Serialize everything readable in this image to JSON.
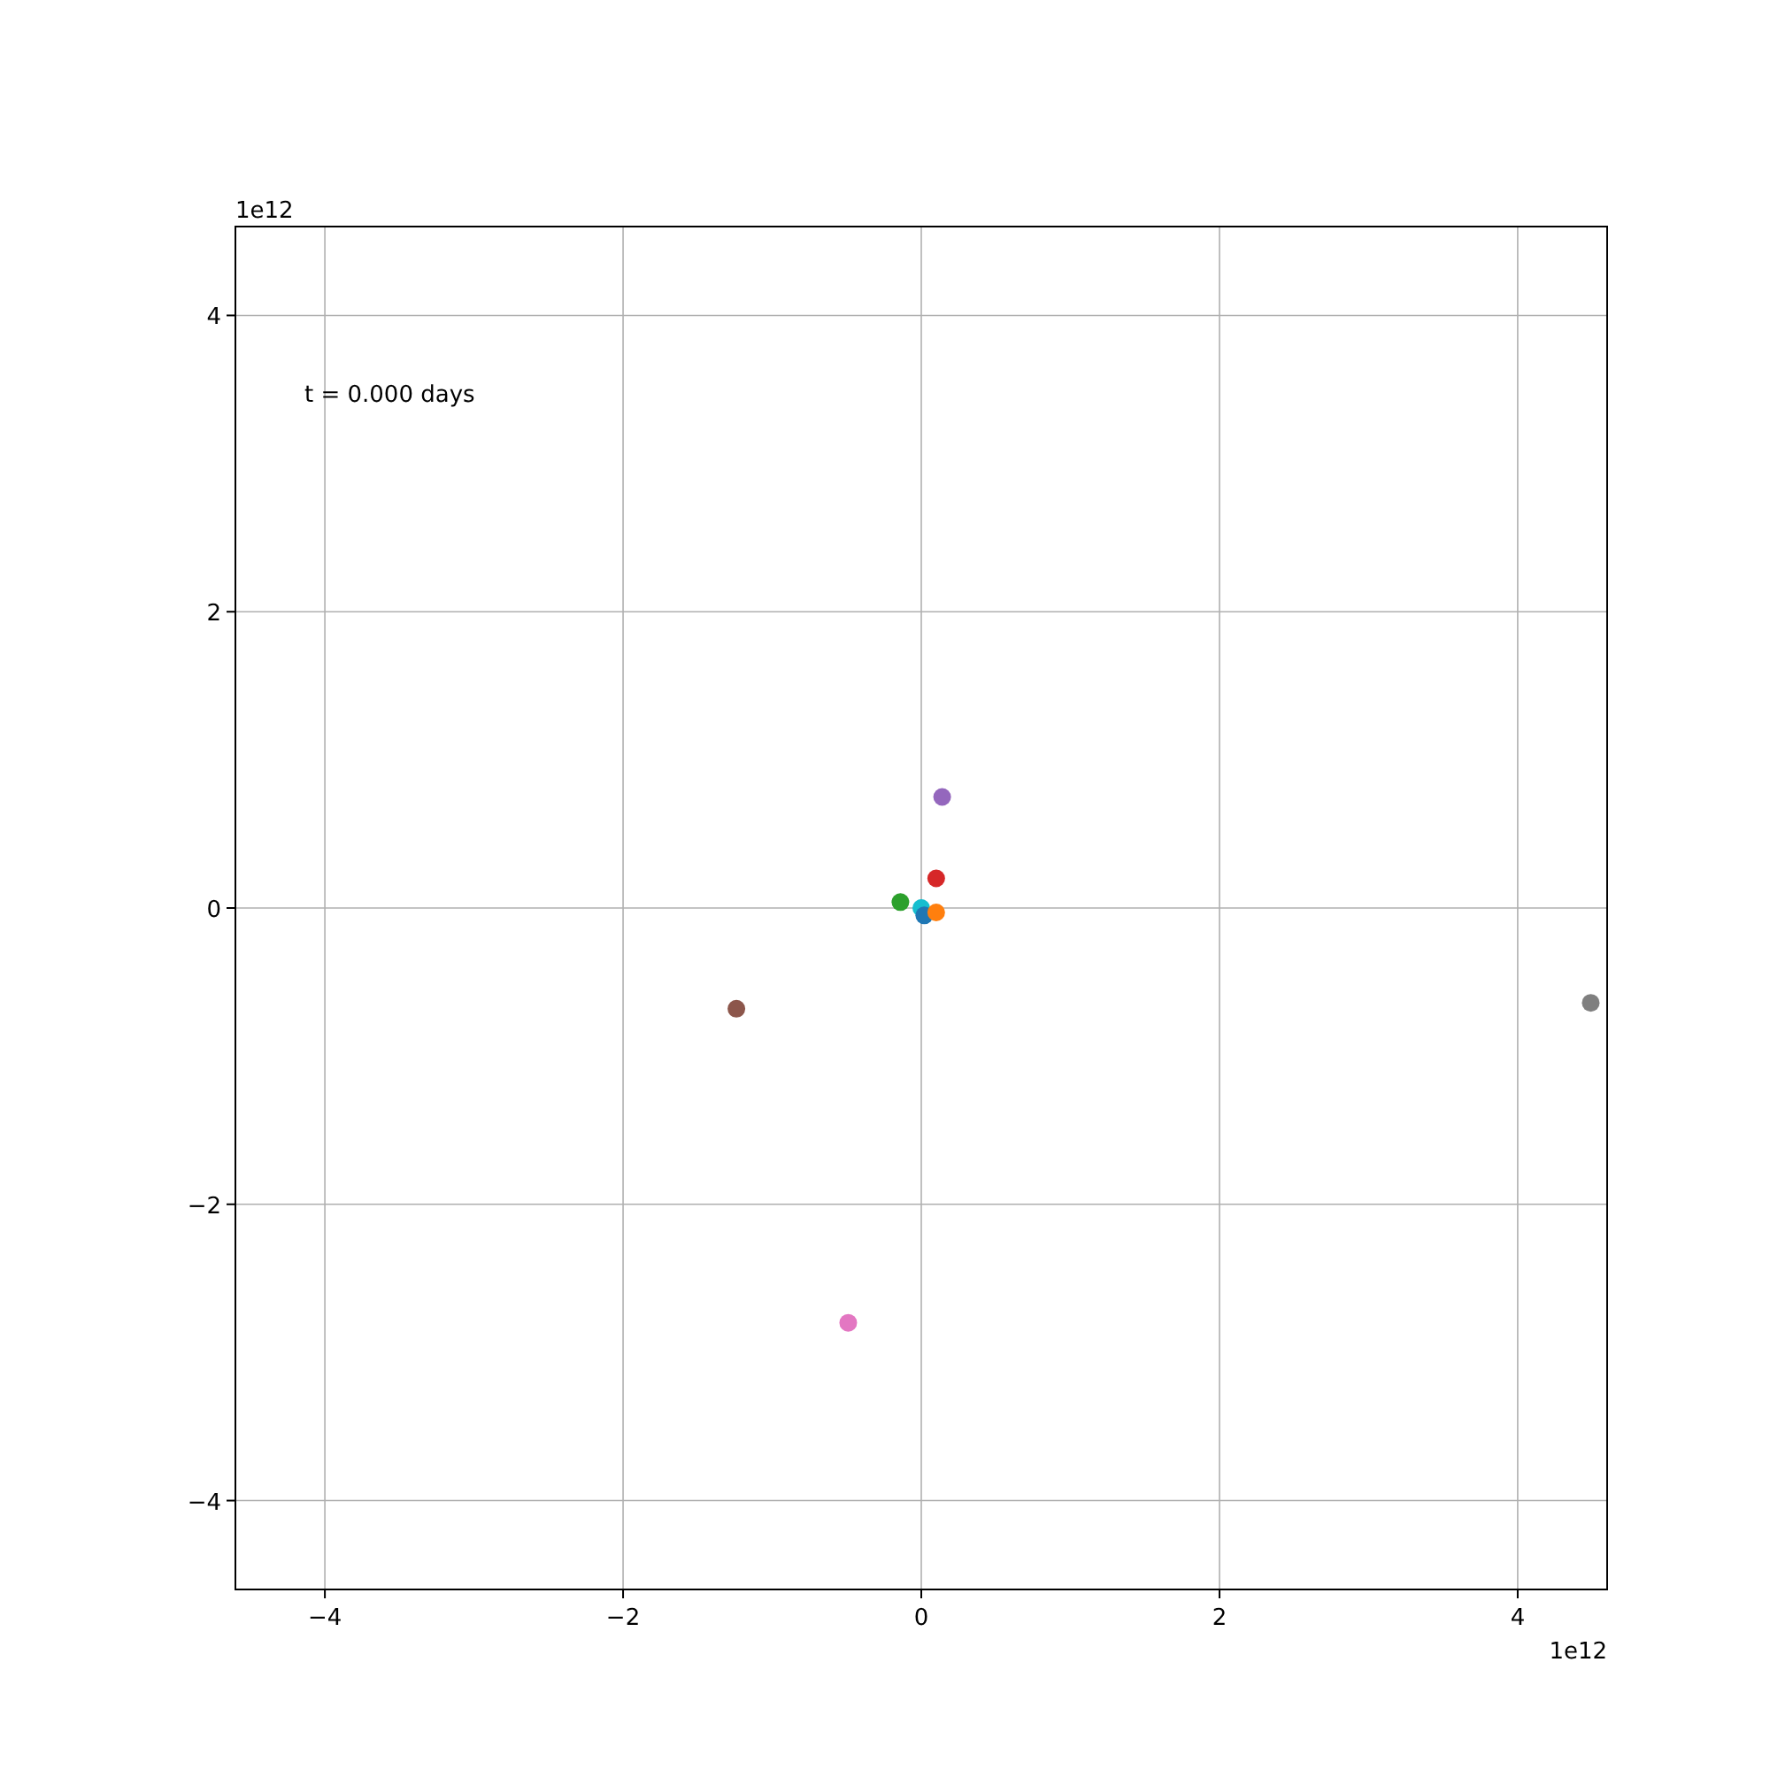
{
  "chart_data": {
    "type": "scatter",
    "marker": "circle",
    "grid": true,
    "xlim": [
      -4.6,
      4.6
    ],
    "ylim": [
      -4.6,
      4.6
    ],
    "xticks": [
      {
        "value": -4,
        "label": "−4"
      },
      {
        "value": -2,
        "label": "−2"
      },
      0,
      2,
      4
    ],
    "yticks": [
      {
        "value": -4,
        "label": "−4"
      },
      {
        "value": -2,
        "label": "−2"
      },
      0,
      2,
      4
    ],
    "annotations": [
      "t = 0.000 days",
      "1e12",
      "1e12"
    ],
    "series": [
      {
        "color": "#17becf",
        "x": [
          0
        ],
        "values": [
          0
        ]
      },
      {
        "color": "#1f77b4",
        "x": [
          0.02
        ],
        "values": [
          -0.05
        ]
      },
      {
        "color": "#ff7f0e",
        "x": [
          0.1
        ],
        "values": [
          -0.03
        ]
      },
      {
        "color": "#2ca02c",
        "x": [
          -0.14
        ],
        "values": [
          0.04
        ]
      },
      {
        "color": "#d62728",
        "x": [
          0.1
        ],
        "values": [
          0.2
        ]
      },
      {
        "color": "#9467bd",
        "x": [
          0.14
        ],
        "values": [
          0.75
        ]
      },
      {
        "color": "#8c564b",
        "x": [
          -1.24
        ],
        "values": [
          -0.68
        ]
      },
      {
        "color": "#e377c2",
        "x": [
          -0.49
        ],
        "values": [
          -2.8
        ]
      },
      {
        "color": "#7f7f7f",
        "x": [
          4.49
        ],
        "values": [
          -0.64
        ]
      }
    ]
  }
}
